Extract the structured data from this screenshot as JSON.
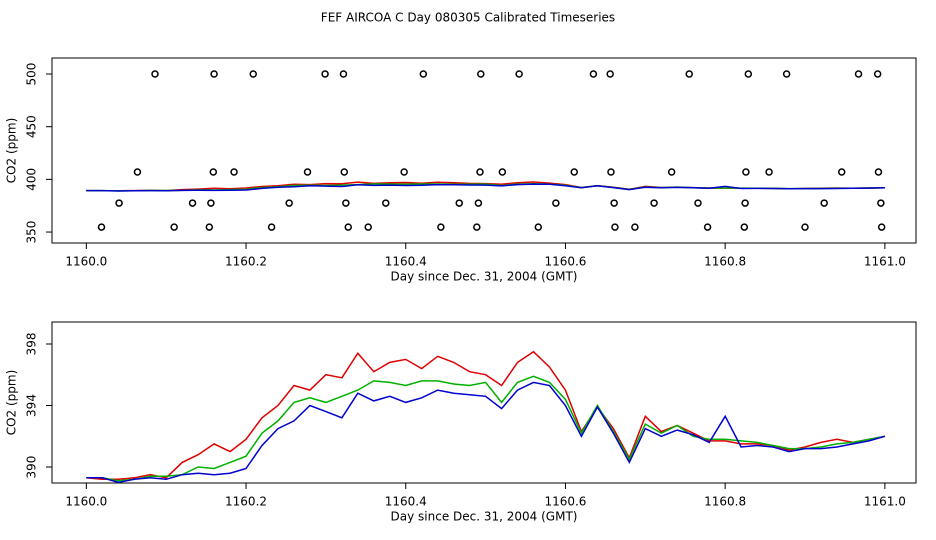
{
  "chart_data": [
    {
      "type": "line",
      "title": "FEF AIRCOA C  Day 080305  Calibrated Timeseries",
      "xlabel": "Day since Dec. 31, 2004 (GMT)",
      "ylabel": "CO2 (ppm)",
      "xlim": [
        1159.957,
        1161.039
      ],
      "ylim": [
        339.6,
        515.2
      ],
      "xticks": [
        {
          "value": 1160,
          "label": "1160.0"
        },
        {
          "value": 1160.2,
          "label": "1160.2"
        },
        {
          "value": 1160.4,
          "label": "1160.4"
        },
        {
          "value": 1160.6,
          "label": "1160.6"
        },
        {
          "value": 1160.8,
          "label": "1160.8"
        },
        {
          "value": 1161,
          "label": "1161.0"
        }
      ],
      "yticks": [
        350,
        400,
        450,
        500
      ],
      "x": [
        1160.0,
        1160.02,
        1160.04,
        1160.06,
        1160.08,
        1160.1,
        1160.12,
        1160.14,
        1160.16,
        1160.18,
        1160.2,
        1160.22,
        1160.24,
        1160.26,
        1160.28,
        1160.3,
        1160.32,
        1160.34,
        1160.36,
        1160.38,
        1160.4,
        1160.42,
        1160.44,
        1160.46,
        1160.48,
        1160.5,
        1160.52,
        1160.54,
        1160.56,
        1160.58,
        1160.6,
        1160.62,
        1160.64,
        1160.66,
        1160.68,
        1160.7,
        1160.72,
        1160.74,
        1160.76,
        1160.78,
        1160.8,
        1160.82,
        1160.84,
        1160.86,
        1160.88,
        1160.9,
        1160.92,
        1160.94,
        1160.96,
        1160.98,
        1161.0
      ],
      "series": [
        {
          "type": "line",
          "color": "#e00000",
          "values": [
            389.3,
            389.2,
            389.2,
            389.3,
            389.5,
            389.3,
            390.3,
            390.8,
            391.5,
            391.0,
            391.8,
            393.2,
            394.0,
            395.3,
            395.0,
            396.0,
            395.8,
            397.4,
            396.2,
            396.8,
            397.0,
            396.4,
            397.2,
            396.8,
            396.2,
            396.0,
            395.3,
            396.8,
            397.5,
            396.5,
            395.0,
            392.3,
            393.9,
            392.5,
            390.6,
            393.3,
            392.3,
            392.7,
            392.2,
            391.7,
            391.7,
            391.5,
            391.5,
            391.4,
            391.1,
            391.3,
            391.6,
            391.8,
            391.6,
            391.8,
            392.0
          ]
        },
        {
          "type": "line",
          "color": "#00b000",
          "values": [
            389.3,
            389.3,
            389.1,
            389.2,
            389.4,
            389.4,
            389.5,
            390.0,
            389.9,
            390.3,
            390.7,
            392.2,
            393.0,
            394.2,
            394.5,
            394.2,
            394.6,
            395.0,
            395.6,
            395.5,
            395.3,
            395.6,
            395.6,
            395.4,
            395.3,
            395.5,
            394.2,
            395.5,
            395.9,
            395.5,
            394.4,
            392.2,
            394.0,
            392.3,
            390.5,
            392.8,
            392.2,
            392.7,
            392.0,
            391.8,
            391.8,
            391.7,
            391.6,
            391.4,
            391.2,
            391.2,
            391.3,
            391.5,
            391.6,
            391.8,
            392.0
          ]
        },
        {
          "type": "line",
          "color": "#0000d0",
          "values": [
            389.3,
            389.3,
            389.0,
            389.2,
            389.3,
            389.2,
            389.5,
            389.6,
            389.5,
            389.6,
            389.9,
            391.4,
            392.5,
            393.0,
            394.0,
            393.6,
            393.2,
            394.8,
            394.3,
            394.6,
            394.2,
            394.5,
            395.0,
            394.8,
            394.7,
            394.6,
            393.8,
            395.0,
            395.5,
            395.3,
            394.0,
            392.0,
            393.9,
            392.2,
            390.3,
            392.5,
            392.0,
            392.4,
            392.1,
            391.6,
            393.3,
            391.3,
            391.4,
            391.3,
            391.0,
            391.2,
            391.2,
            391.3,
            391.5,
            391.7,
            392.0
          ]
        },
        {
          "type": "scatter",
          "color": "#000000",
          "x": [
            1160.086,
            1160.16,
            1160.209,
            1160.299,
            1160.322,
            1160.422,
            1160.494,
            1160.542,
            1160.635,
            1160.656,
            1160.755,
            1160.829,
            1160.877,
            1160.967,
            1160.991,
            1160.064,
            1160.159,
            1160.185,
            1160.277,
            1160.323,
            1160.398,
            1160.493,
            1160.521,
            1160.611,
            1160.657,
            1160.733,
            1160.826,
            1160.855,
            1160.946,
            1160.992,
            1160.041,
            1160.133,
            1160.156,
            1160.254,
            1160.325,
            1160.375,
            1160.467,
            1160.491,
            1160.588,
            1160.661,
            1160.711,
            1160.766,
            1160.825,
            1160.924,
            1160.995,
            1160.019,
            1160.11,
            1160.154,
            1160.232,
            1160.328,
            1160.353,
            1160.444,
            1160.489,
            1160.566,
            1160.662,
            1160.687,
            1160.778,
            1160.824,
            1160.9,
            1160.996
          ],
          "values": [
            500,
            500,
            500,
            500,
            500,
            500,
            500,
            500,
            500,
            500,
            500,
            500,
            500,
            500,
            500,
            407,
            407,
            407,
            407,
            407,
            407,
            407,
            407,
            407,
            407,
            407,
            407,
            407,
            407,
            407,
            377.5,
            377.5,
            377.5,
            377.5,
            377.5,
            377.5,
            377.5,
            377.5,
            377.5,
            377.5,
            377.5,
            377.5,
            377.5,
            377.5,
            377.5,
            354.7,
            354.7,
            354.7,
            354.7,
            354.7,
            354.7,
            354.7,
            354.7,
            354.7,
            354.7,
            354.7,
            354.7,
            354.7,
            354.7,
            354.7
          ]
        }
      ]
    },
    {
      "type": "line",
      "xlabel": "Day since Dec. 31, 2004 (GMT)",
      "ylabel": "CO2 (ppm)",
      "xlim": [
        1159.957,
        1161.039
      ],
      "ylim": [
        388.96,
        399.43
      ],
      "xticks": [
        {
          "value": 1160,
          "label": "1160.0"
        },
        {
          "value": 1160.2,
          "label": "1160.2"
        },
        {
          "value": 1160.4,
          "label": "1160.4"
        },
        {
          "value": 1160.6,
          "label": "1160.6"
        },
        {
          "value": 1160.8,
          "label": "1160.8"
        },
        {
          "value": 1161,
          "label": "1161.0"
        }
      ],
      "yticks": [
        390,
        394,
        398
      ],
      "x": [
        1160.0,
        1160.02,
        1160.04,
        1160.06,
        1160.08,
        1160.1,
        1160.12,
        1160.14,
        1160.16,
        1160.18,
        1160.2,
        1160.22,
        1160.24,
        1160.26,
        1160.28,
        1160.3,
        1160.32,
        1160.34,
        1160.36,
        1160.38,
        1160.4,
        1160.42,
        1160.44,
        1160.46,
        1160.48,
        1160.5,
        1160.52,
        1160.54,
        1160.56,
        1160.58,
        1160.6,
        1160.62,
        1160.64,
        1160.66,
        1160.68,
        1160.7,
        1160.72,
        1160.74,
        1160.76,
        1160.78,
        1160.8,
        1160.82,
        1160.84,
        1160.86,
        1160.88,
        1160.9,
        1160.92,
        1160.94,
        1160.96,
        1160.98,
        1161.0
      ],
      "series": [
        {
          "type": "line",
          "color": "#e00000",
          "values": [
            389.3,
            389.2,
            389.2,
            389.3,
            389.5,
            389.3,
            390.3,
            390.8,
            391.5,
            391.0,
            391.8,
            393.2,
            394.0,
            395.3,
            395.0,
            396.0,
            395.8,
            397.4,
            396.2,
            396.8,
            397.0,
            396.4,
            397.2,
            396.8,
            396.2,
            396.0,
            395.3,
            396.8,
            397.5,
            396.5,
            395.0,
            392.3,
            393.9,
            392.5,
            390.6,
            393.3,
            392.3,
            392.7,
            392.2,
            391.7,
            391.7,
            391.5,
            391.5,
            391.4,
            391.1,
            391.3,
            391.6,
            391.8,
            391.6,
            391.8,
            392.0
          ]
        },
        {
          "type": "line",
          "color": "#00b000",
          "values": [
            389.3,
            389.3,
            389.1,
            389.2,
            389.4,
            389.4,
            389.5,
            390.0,
            389.9,
            390.3,
            390.7,
            392.2,
            393.0,
            394.2,
            394.5,
            394.2,
            394.6,
            395.0,
            395.6,
            395.5,
            395.3,
            395.6,
            395.6,
            395.4,
            395.3,
            395.5,
            394.2,
            395.5,
            395.9,
            395.5,
            394.4,
            392.2,
            394.0,
            392.3,
            390.5,
            392.8,
            392.2,
            392.7,
            392.0,
            391.8,
            391.8,
            391.7,
            391.6,
            391.4,
            391.2,
            391.2,
            391.3,
            391.5,
            391.6,
            391.8,
            392.0
          ]
        },
        {
          "type": "line",
          "color": "#0000d0",
          "values": [
            389.3,
            389.3,
            389.0,
            389.2,
            389.3,
            389.2,
            389.5,
            389.6,
            389.5,
            389.6,
            389.9,
            391.4,
            392.5,
            393.0,
            394.0,
            393.6,
            393.2,
            394.8,
            394.3,
            394.6,
            394.2,
            394.5,
            395.0,
            394.8,
            394.7,
            394.6,
            393.8,
            395.0,
            395.5,
            395.3,
            394.0,
            392.0,
            393.9,
            392.2,
            390.3,
            392.5,
            392.0,
            392.4,
            392.1,
            391.6,
            393.3,
            391.3,
            391.4,
            391.3,
            391.0,
            391.2,
            391.2,
            391.3,
            391.5,
            391.7,
            392.0
          ]
        }
      ]
    }
  ]
}
